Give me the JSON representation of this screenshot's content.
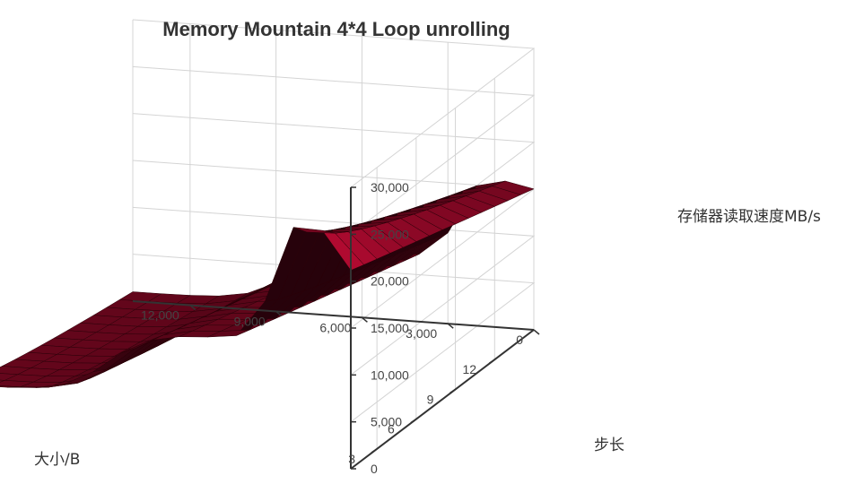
{
  "chart_data": {
    "type": "surface3d",
    "title": "Memory Mountain 4*4 Loop unrolling",
    "xlabel": "步长",
    "ylabel": "大小/B",
    "zlabel": "存储器读取速度MB/s",
    "x_axis": {
      "name": "步长",
      "range": [
        1,
        15
      ],
      "ticks": [
        "3",
        "6",
        "9",
        "12"
      ]
    },
    "y_axis": {
      "name": "大小/B",
      "range": [
        0,
        14000
      ],
      "ticks": [
        "0",
        "3,000",
        "6,000",
        "9,000",
        "12,000"
      ]
    },
    "z_axis": {
      "name": "存储器读取速度MB/s",
      "range": [
        0,
        30000
      ],
      "ticks": [
        "0",
        "5,000",
        "10,000",
        "15,000",
        "20,000",
        "25,000",
        "30,000"
      ]
    },
    "stride": [
      1,
      2,
      3,
      4,
      5,
      6,
      7,
      8,
      9,
      10,
      11,
      12,
      13,
      14,
      15
    ],
    "size": [
      0,
      1000,
      2000,
      3000,
      4000,
      5000,
      6000,
      7000,
      8000,
      9000,
      10000,
      11000,
      12000,
      13000,
      14000
    ],
    "ridges": {
      "l1_top": 21000,
      "l1_bottom": 15000,
      "l2_top": 27000,
      "l2_bottom": 16000,
      "l3_top": 13000,
      "l3_bottom": 7000,
      "mem_top": 6000,
      "mem_bottom": 1000
    },
    "color": "#b00a30",
    "grid": true,
    "legend": "none"
  }
}
